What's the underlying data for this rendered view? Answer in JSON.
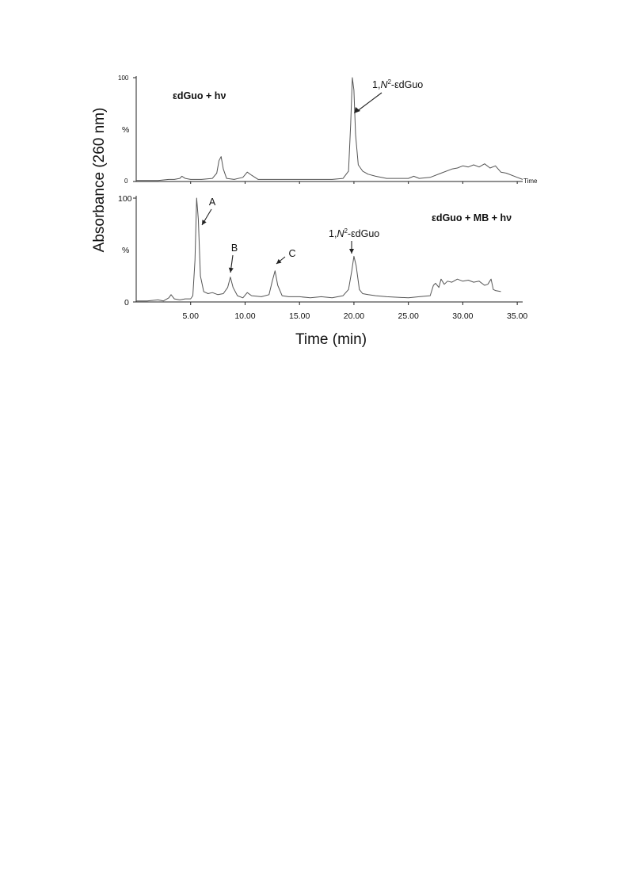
{
  "figure": {
    "ylabel": "Absorbance (260 nm)",
    "xlabel": "Time (min)"
  },
  "chart_data": [
    {
      "type": "line",
      "panel": "top",
      "title": "εdGuo + hν",
      "xlabel": "Time",
      "ylabel": "%",
      "ytick_labels": [
        "100",
        "%",
        "0"
      ],
      "xlim": [
        0,
        35.5
      ],
      "ylim": [
        0,
        100
      ],
      "series": [
        {
          "x": [
            0,
            2.0,
            3.0,
            3.5,
            4.0,
            4.2,
            4.5,
            5.0,
            5.5,
            6.0,
            7.0,
            7.4,
            7.6,
            7.8,
            8.0,
            8.3,
            9.0,
            9.8,
            10.2,
            10.6,
            11.2,
            12.5,
            15.0,
            18.0,
            19.0,
            19.5,
            19.7,
            19.85,
            20.0,
            20.15,
            20.4,
            20.8,
            21.3,
            22.0,
            23.0,
            25.0,
            25.5,
            26.0,
            27.0,
            28.0,
            29.0,
            29.5,
            30.0,
            30.5,
            31.0,
            31.5,
            32.0,
            32.5,
            33.0,
            33.5,
            34.0,
            35.0,
            35.5
          ],
          "y": [
            1,
            1,
            2,
            2,
            3,
            5,
            3,
            2,
            2,
            2,
            3,
            8,
            20,
            24,
            12,
            3,
            2,
            4,
            9,
            6,
            2,
            2,
            2,
            2,
            3,
            10,
            55,
            100,
            88,
            45,
            16,
            10,
            7,
            5,
            3,
            3,
            5,
            3,
            4,
            8,
            12,
            13,
            15,
            14,
            16,
            14,
            17,
            13,
            15,
            9,
            8,
            4,
            2
          ]
        }
      ]
    },
    {
      "type": "line",
      "panel": "bottom",
      "title": "εdGuo + MB + hν",
      "ylabel": "%",
      "ytick_labels": [
        "100",
        "%",
        "0"
      ],
      "xlim": [
        0,
        35.5
      ],
      "ylim": [
        0,
        100
      ],
      "x_tick_labels": [
        "5.00",
        "10.00",
        "15.00",
        "20.00",
        "25.00",
        "30.00",
        "35.00"
      ],
      "x_tick_values": [
        5,
        10,
        15,
        20,
        25,
        30,
        35
      ],
      "series": [
        {
          "x": [
            0,
            1.0,
            2.0,
            2.5,
            3.0,
            3.2,
            3.5,
            4.0,
            4.5,
            5.0,
            5.2,
            5.4,
            5.55,
            5.7,
            5.9,
            6.2,
            6.6,
            7.0,
            7.5,
            8.0,
            8.4,
            8.65,
            8.9,
            9.3,
            9.8,
            10.2,
            10.6,
            11.5,
            12.2,
            12.5,
            12.75,
            13.0,
            13.4,
            14.0,
            15.0,
            16.0,
            17.0,
            18.0,
            19.0,
            19.5,
            19.8,
            20.0,
            20.2,
            20.5,
            20.8,
            21.3,
            22.0,
            23.0,
            25.0,
            26.0,
            27.0,
            27.3,
            27.5,
            27.8,
            28.0,
            28.3,
            28.6,
            29.0,
            29.5,
            30.0,
            30.5,
            31.0,
            31.5,
            32.0,
            32.3,
            32.6,
            32.8,
            33.0,
            33.5
          ],
          "y": [
            1,
            1,
            2,
            1,
            4,
            7,
            3,
            2,
            3,
            3,
            6,
            40,
            100,
            80,
            25,
            10,
            8,
            9,
            7,
            8,
            14,
            24,
            14,
            6,
            4,
            9,
            6,
            5,
            7,
            20,
            30,
            16,
            6,
            5,
            5,
            4,
            5,
            4,
            6,
            12,
            30,
            44,
            35,
            12,
            8,
            7,
            6,
            5,
            4,
            5,
            6,
            16,
            18,
            14,
            22,
            17,
            20,
            19,
            22,
            20,
            21,
            19,
            20,
            16,
            17,
            22,
            12,
            11,
            10
          ]
        }
      ],
      "annotations": [
        {
          "text": "A",
          "x": 5.55
        },
        {
          "text": "B",
          "x": 8.65
        },
        {
          "text": "C",
          "x": 12.75
        },
        {
          "text": "1,N²-εdGuo",
          "x": 20.0
        }
      ]
    }
  ],
  "top_annotation": {
    "text": "1,N²-εdGuo",
    "x": 19.85
  }
}
